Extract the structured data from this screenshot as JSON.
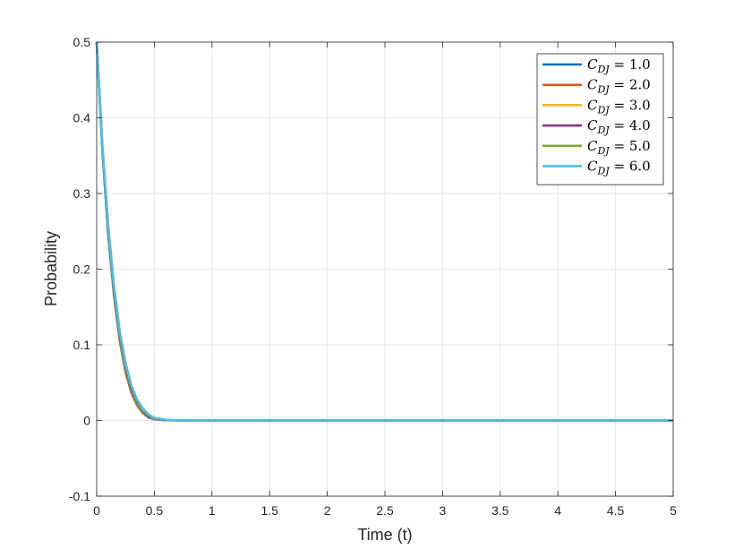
{
  "chart_data": {
    "type": "line",
    "xlabel": "Time (t)",
    "ylabel": "Probability",
    "xlim": [
      0,
      5
    ],
    "ylim": [
      -0.1,
      0.5
    ],
    "x_ticks": [
      0,
      0.5,
      1,
      1.5,
      2,
      2.5,
      3,
      3.5,
      4,
      4.5,
      5
    ],
    "x_tick_labels": [
      "0",
      "0.5",
      "1",
      "1.5",
      "2",
      "2.5",
      "3",
      "3.5",
      "4",
      "4.5",
      "5"
    ],
    "y_ticks": [
      -0.1,
      0,
      0.1,
      0.2,
      0.3,
      0.4,
      0.5
    ],
    "y_tick_labels": [
      "-0.1",
      "0",
      "0.1",
      "0.2",
      "0.3",
      "0.4",
      "0.5"
    ],
    "grid": true,
    "legend_position": "top-right",
    "x": [
      0,
      0.05,
      0.1,
      0.15,
      0.2,
      0.25,
      0.3,
      0.35,
      0.4,
      0.45,
      0.5,
      0.6,
      0.7,
      0.8,
      1,
      1.5,
      2,
      3,
      4,
      5
    ],
    "series": [
      {
        "name": "C_{DJ} = 1.0",
        "symbol": "C",
        "subscript": "DJ",
        "value_label": "1.0",
        "color": "#0072BD",
        "values": [
          0.5,
          0.355,
          0.245,
          0.165,
          0.105,
          0.064,
          0.037,
          0.02,
          0.01,
          0.004,
          0.0015,
          0.0003,
          0.0001,
          0,
          0,
          0,
          0,
          0,
          0,
          0
        ]
      },
      {
        "name": "C_{DJ} = 2.0",
        "symbol": "C",
        "subscript": "DJ",
        "value_label": "2.0",
        "color": "#D95319",
        "values": [
          0.5,
          0.356,
          0.247,
          0.167,
          0.107,
          0.066,
          0.038,
          0.021,
          0.011,
          0.005,
          0.0018,
          0.0004,
          0.0001,
          0,
          0,
          0,
          0,
          0,
          0,
          0
        ]
      },
      {
        "name": "C_{DJ} = 3.0",
        "symbol": "C",
        "subscript": "DJ",
        "value_label": "3.0",
        "color": "#EDB120",
        "values": [
          0.5,
          0.358,
          0.25,
          0.17,
          0.11,
          0.068,
          0.04,
          0.022,
          0.012,
          0.0055,
          0.002,
          0.0005,
          0.0001,
          0,
          0,
          0,
          0,
          0,
          0,
          0
        ]
      },
      {
        "name": "C_{DJ} = 4.0",
        "symbol": "C",
        "subscript": "DJ",
        "value_label": "4.0",
        "color": "#7E2F8E",
        "values": [
          0.5,
          0.36,
          0.253,
          0.173,
          0.113,
          0.071,
          0.042,
          0.024,
          0.013,
          0.006,
          0.0025,
          0.0006,
          0.0001,
          0,
          0,
          0,
          0,
          0,
          0,
          0
        ]
      },
      {
        "name": "C_{DJ} = 5.0",
        "symbol": "C",
        "subscript": "DJ",
        "value_label": "5.0",
        "color": "#77AC30",
        "values": [
          0.5,
          0.362,
          0.256,
          0.176,
          0.116,
          0.074,
          0.045,
          0.026,
          0.014,
          0.007,
          0.003,
          0.0008,
          0.0002,
          0,
          0,
          0,
          0,
          0,
          0,
          0
        ]
      },
      {
        "name": "C_{DJ} = 6.0",
        "symbol": "C",
        "subscript": "DJ",
        "value_label": "6.0",
        "color": "#4DBEEE",
        "values": [
          0.5,
          0.364,
          0.259,
          0.179,
          0.119,
          0.077,
          0.047,
          0.028,
          0.016,
          0.008,
          0.0035,
          0.001,
          0.0003,
          0,
          0,
          0,
          0,
          0,
          0,
          0
        ]
      }
    ]
  }
}
